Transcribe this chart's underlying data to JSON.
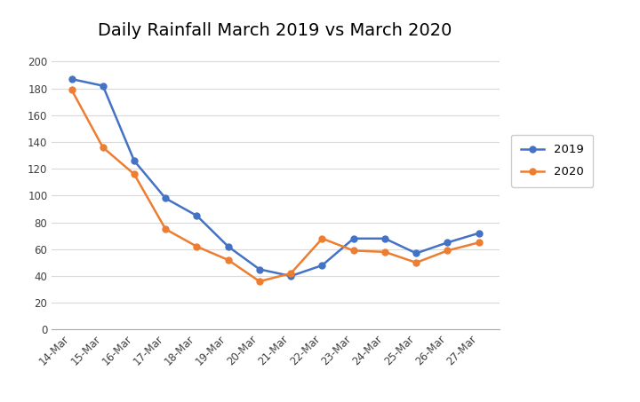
{
  "title": "Daily Rainfall March 2019 vs March 2020",
  "x_labels": [
    "14-Mar",
    "15-Mar",
    "16-Mar",
    "17-Mar",
    "18-Mar",
    "19-Mar",
    "20-Mar",
    "21-Mar",
    "22-Mar",
    "23-Mar",
    "24-Mar",
    "25-Mar",
    "26-Mar",
    "27-Mar"
  ],
  "series_2019": [
    187,
    182,
    126,
    98,
    85,
    62,
    45,
    40,
    48,
    68,
    68,
    57,
    65,
    72
  ],
  "series_2020": [
    179,
    136,
    116,
    75,
    62,
    52,
    36,
    42,
    68,
    59,
    58,
    50,
    59,
    65
  ],
  "color_2019": "#4472C4",
  "color_2020": "#ED7D31",
  "ylim": [
    0,
    210
  ],
  "yticks": [
    0,
    20,
    40,
    60,
    80,
    100,
    120,
    140,
    160,
    180,
    200
  ],
  "bg_color": "#FFFFFF",
  "grid_color": "#D9D9D9",
  "title_fontsize": 14,
  "legend_labels": [
    "2019",
    "2020"
  ],
  "marker": "o",
  "marker_size": 5,
  "linewidth": 1.8
}
